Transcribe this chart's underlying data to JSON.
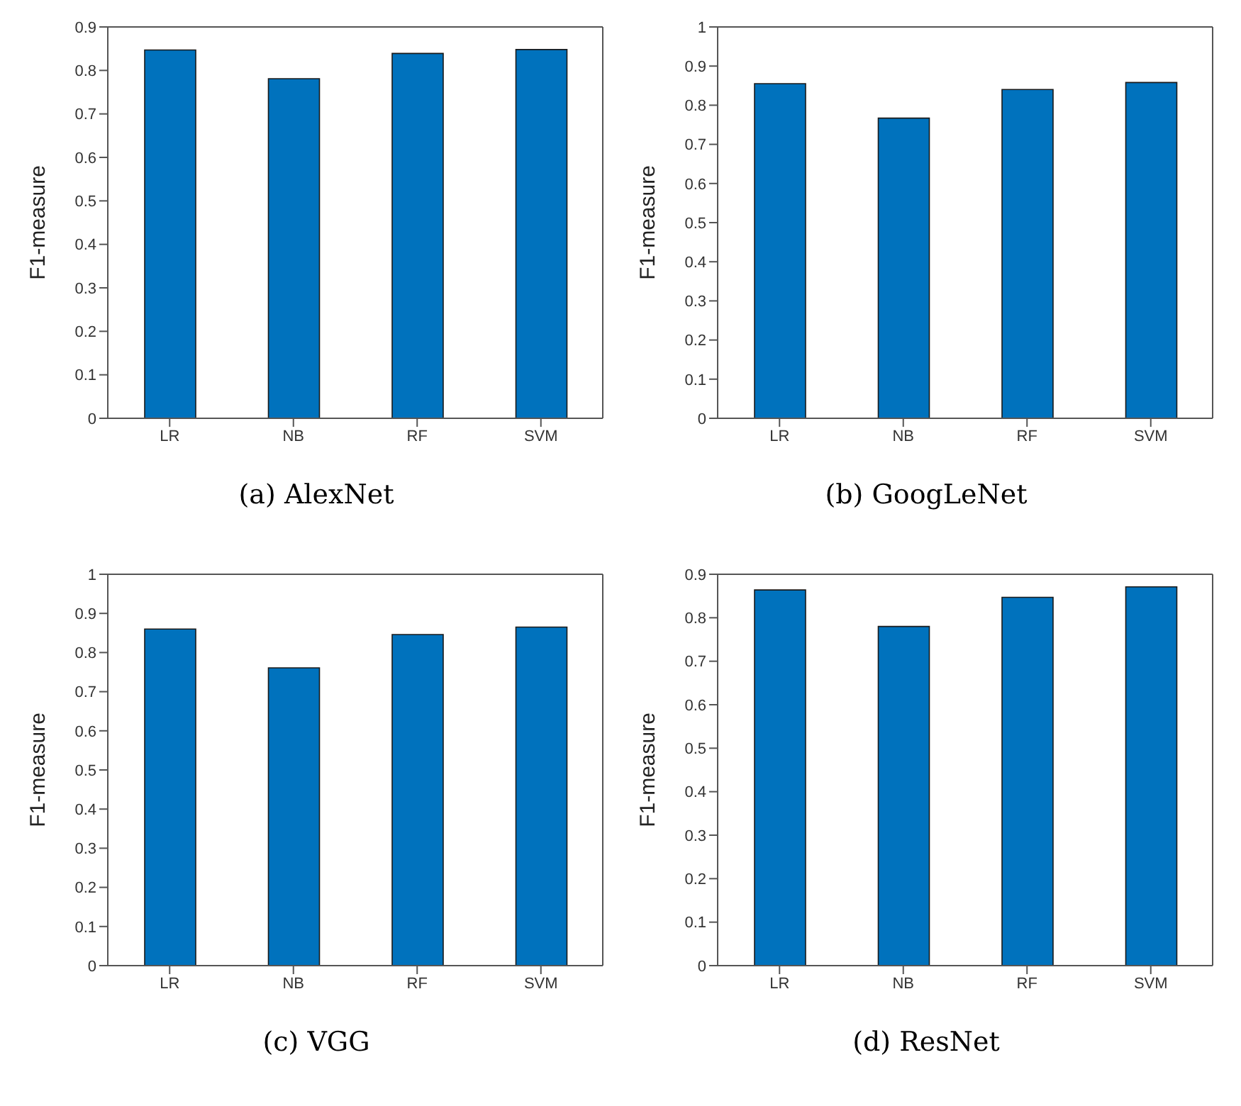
{
  "chart_data": [
    {
      "type": "bar",
      "title": "(a)  AlexNet",
      "ylabel": "F1-measure",
      "categories": [
        "LR",
        "NB",
        "RF",
        "SVM"
      ],
      "values": [
        0.847,
        0.781,
        0.839,
        0.848
      ],
      "color": "#0072bd",
      "ylim": [
        0,
        0.9
      ],
      "yticks": [
        0,
        0.1,
        0.2,
        0.3,
        0.4,
        0.5,
        0.6,
        0.7,
        0.8,
        0.9
      ],
      "grid": false,
      "legend": false
    },
    {
      "type": "bar",
      "title": "(b)  GoogLeNet",
      "ylabel": "F1-measure",
      "categories": [
        "LR",
        "NB",
        "RF",
        "SVM"
      ],
      "values": [
        0.855,
        0.767,
        0.84,
        0.858
      ],
      "color": "#0072bd",
      "ylim": [
        0,
        1
      ],
      "yticks": [
        0,
        0.1,
        0.2,
        0.3,
        0.4,
        0.5,
        0.6,
        0.7,
        0.8,
        0.9,
        1
      ],
      "grid": false,
      "legend": false
    },
    {
      "type": "bar",
      "title": "(c)  VGG",
      "ylabel": "F1-measure",
      "categories": [
        "LR",
        "NB",
        "RF",
        "SVM"
      ],
      "values": [
        0.86,
        0.761,
        0.846,
        0.865
      ],
      "color": "#0072bd",
      "ylim": [
        0,
        1
      ],
      "yticks": [
        0,
        0.1,
        0.2,
        0.3,
        0.4,
        0.5,
        0.6,
        0.7,
        0.8,
        0.9,
        1
      ],
      "grid": false,
      "legend": false
    },
    {
      "type": "bar",
      "title": "(d)  ResNet",
      "ylabel": "F1-measure",
      "categories": [
        "LR",
        "NB",
        "RF",
        "SVM"
      ],
      "values": [
        0.864,
        0.78,
        0.847,
        0.871
      ],
      "color": "#0072bd",
      "ylim": [
        0,
        0.9
      ],
      "yticks": [
        0,
        0.1,
        0.2,
        0.3,
        0.4,
        0.5,
        0.6,
        0.7,
        0.8,
        0.9
      ],
      "grid": false,
      "legend": false
    }
  ]
}
